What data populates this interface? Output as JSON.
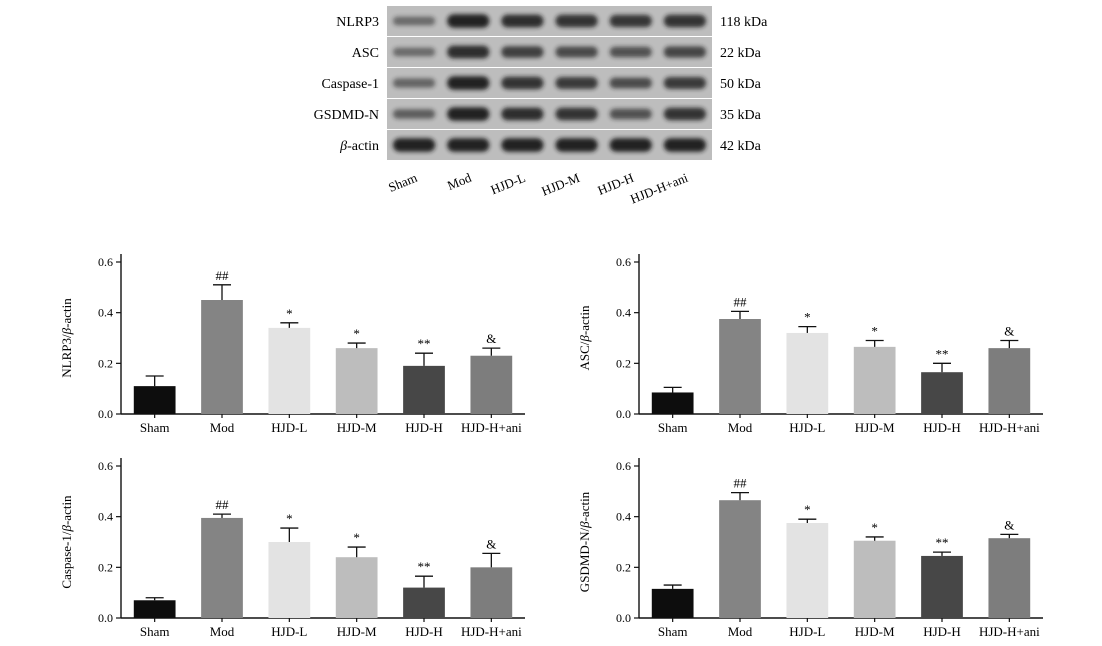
{
  "western_blot": {
    "proteins": [
      {
        "name": "NLRP3",
        "size": "118 kDa"
      },
      {
        "name": "ASC",
        "size": "22 kDa"
      },
      {
        "name": "Caspase-1",
        "size": "50 kDa"
      },
      {
        "name": "GSDMD-N",
        "size": "35 kDa"
      },
      {
        "name": "β-actin",
        "size": "42 kDa",
        "italic_prefix": "β",
        "suffix": "-actin"
      }
    ],
    "lanes": [
      "Sham",
      "Mod",
      "HJD-L",
      "HJD-M",
      "HJD-H",
      "HJD-H+ani"
    ],
    "band_intensity": [
      [
        0.35,
        0.95,
        0.85,
        0.8,
        0.78,
        0.8
      ],
      [
        0.35,
        0.85,
        0.7,
        0.62,
        0.55,
        0.65
      ],
      [
        0.4,
        0.95,
        0.8,
        0.75,
        0.6,
        0.75
      ],
      [
        0.45,
        0.95,
        0.85,
        0.8,
        0.55,
        0.8
      ],
      [
        0.95,
        0.95,
        0.95,
        0.95,
        0.95,
        0.95
      ]
    ]
  },
  "colors": {
    "bars": [
      "#0d0d0d",
      "#848484",
      "#e3e3e3",
      "#bdbdbd",
      "#474747",
      "#7d7d7d"
    ],
    "blot_bg": "#bdbdbd",
    "band": "#1a1a1a"
  },
  "chart_data": [
    {
      "type": "bar",
      "categories": [
        "Sham",
        "Mod",
        "HJD-L",
        "HJD-M",
        "HJD-H",
        "HJD-H+ani"
      ],
      "values": [
        0.11,
        0.45,
        0.34,
        0.26,
        0.19,
        0.23
      ],
      "errors": [
        0.04,
        0.06,
        0.02,
        0.02,
        0.05,
        0.03
      ],
      "annotations": [
        "",
        "##",
        "*",
        "*",
        "**",
        "&"
      ],
      "ylabel_prefix": "NLRP3/",
      "ylabel_italic": "β",
      "ylabel_suffix": "-actin",
      "ylim": [
        0,
        0.6
      ],
      "yticks": [
        "0.0",
        "0.2",
        "0.4",
        "0.6"
      ]
    },
    {
      "type": "bar",
      "categories": [
        "Sham",
        "Mod",
        "HJD-L",
        "HJD-M",
        "HJD-H",
        "HJD-H+ani"
      ],
      "values": [
        0.085,
        0.375,
        0.32,
        0.265,
        0.165,
        0.26
      ],
      "errors": [
        0.02,
        0.03,
        0.025,
        0.025,
        0.035,
        0.03
      ],
      "annotations": [
        "",
        "##",
        "*",
        "*",
        "**",
        "&"
      ],
      "ylabel_prefix": "ASC/",
      "ylabel_italic": "β",
      "ylabel_suffix": "-actin",
      "ylim": [
        0,
        0.6
      ],
      "yticks": [
        "0.0",
        "0.2",
        "0.4",
        "0.6"
      ]
    },
    {
      "type": "bar",
      "categories": [
        "Sham",
        "Mod",
        "HJD-L",
        "HJD-M",
        "HJD-H",
        "HJD-H+ani"
      ],
      "values": [
        0.07,
        0.395,
        0.3,
        0.24,
        0.12,
        0.2
      ],
      "errors": [
        0.01,
        0.015,
        0.055,
        0.04,
        0.045,
        0.055
      ],
      "annotations": [
        "",
        "##",
        "*",
        "*",
        "**",
        "&"
      ],
      "ylabel_prefix": "Caspase-1/",
      "ylabel_italic": "β",
      "ylabel_suffix": "-actin",
      "ylim": [
        0,
        0.6
      ],
      "yticks": [
        "0.0",
        "0.2",
        "0.4",
        "0.6"
      ]
    },
    {
      "type": "bar",
      "categories": [
        "Sham",
        "Mod",
        "HJD-L",
        "HJD-M",
        "HJD-H",
        "HJD-H+ani"
      ],
      "values": [
        0.115,
        0.465,
        0.375,
        0.305,
        0.245,
        0.315
      ],
      "errors": [
        0.015,
        0.03,
        0.015,
        0.015,
        0.015,
        0.015
      ],
      "annotations": [
        "",
        "##",
        "*",
        "*",
        "**",
        "&"
      ],
      "ylabel_prefix": "GSDMD-N/",
      "ylabel_italic": "β",
      "ylabel_suffix": "-actin",
      "ylim": [
        0,
        0.6
      ],
      "yticks": [
        "0.0",
        "0.2",
        "0.4",
        "0.6"
      ]
    }
  ]
}
